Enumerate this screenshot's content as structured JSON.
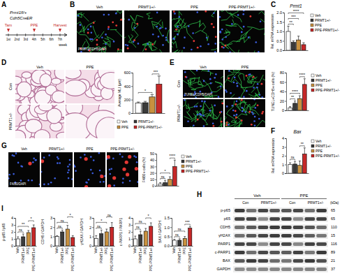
{
  "timeline": {
    "panel": "A",
    "mouse": [
      "Prmt1fl/+",
      "Cdh5CreER"
    ],
    "weeks": [
      "1st",
      "2nd",
      "3rd",
      "4th",
      "5th",
      "6th",
      "7th"
    ],
    "events": [
      "Tam",
      null,
      null,
      "PPE",
      null,
      null,
      "Harvest"
    ],
    "unit": "week"
  },
  "images": [
    {
      "panel": "B",
      "stain": "PRMT1/CDH5/DAPI",
      "labels": [
        "Veh",
        "PRMT1+/-",
        "PPE",
        "PPE-PRMT1+/-"
      ]
    },
    {
      "panel": "D",
      "columns": [
        "Veh",
        "PPE"
      ],
      "rows": [
        "Con",
        "PRMT1+/-"
      ]
    },
    {
      "panel": "E",
      "stain": "TUNEL/CDH5/DAPI",
      "columns": [
        "Veh",
        "PPE"
      ],
      "rows": [
        "Con",
        "PRMT1+/-"
      ]
    },
    {
      "panel": "G",
      "stain": "F4/80/DAPI",
      "labels": [
        "Veh",
        "PRMT1+/-",
        "PPE",
        "PPE-PRMT1+/-"
      ]
    }
  ],
  "blot": {
    "panel": "H",
    "groups": [
      "Veh",
      "PPE"
    ],
    "subgroups": [
      "Con",
      "PRMT1+/-",
      "Con",
      "PRMT1+/-"
    ],
    "unit": "(kDa)",
    "rows": [
      {
        "label": "p-p65",
        "kda": 65
      },
      {
        "label": "p65",
        "kda": 65
      },
      {
        "label": "CDH5",
        "kda": 110
      },
      {
        "label": "γH2AX",
        "kda": 15
      },
      {
        "label": "PARP1",
        "kda": 116
      },
      {
        "label": "c-PARP1",
        "kda": 89
      },
      {
        "label": "BAX",
        "kda": 21
      },
      {
        "label": "GAPDH",
        "kda": 37
      }
    ]
  },
  "chart_data": [
    {
      "panel": "C",
      "type": "bar",
      "title": "Prmt1",
      "y_label": "Rel. mRNA expression",
      "categories": [
        null
      ],
      "series": [
        {
          "name": "Veh",
          "color": "#ffffff",
          "values": [
            1.0
          ],
          "errors": [
            0.28
          ]
        },
        {
          "name": "PRMT1+/-",
          "color": "#3a3a3a",
          "values": [
            0.42
          ],
          "errors": [
            0.08
          ]
        },
        {
          "name": "PPE",
          "color": "#c8913f",
          "values": [
            0.55
          ],
          "errors": [
            0.2
          ]
        },
        {
          "name": "PPE-PRMT1+/-",
          "color": "#c62828",
          "values": [
            0.3
          ],
          "errors": [
            0.1
          ]
        }
      ],
      "ylim": [
        0,
        2
      ],
      "yticks": [
        {
          "value": 0,
          "label": "0.0"
        },
        {
          "value": 0.5,
          "label": "0.5"
        },
        {
          "value": 1,
          "label": "1.0"
        },
        {
          "value": 1.5,
          "label": "1.5"
        },
        {
          "value": 2,
          "label": "2.0"
        }
      ],
      "legend": "right",
      "significance": [
        {
          "label": "**",
          "pair": [
            0,
            1
          ]
        },
        {
          "label": "***",
          "pair": [
            0,
            2
          ]
        },
        {
          "label": "****",
          "pair": [
            0,
            3
          ]
        }
      ]
    },
    {
      "type": "bar",
      "y_label": "Average MLI (μm)",
      "categories": [
        null
      ],
      "series": [
        {
          "name": "Veh",
          "color": "#ffffff",
          "values": [
            150
          ],
          "errors": [
            15
          ]
        },
        {
          "name": "PRMT1+/-",
          "color": "#3a3a3a",
          "values": [
            155
          ],
          "errors": [
            20
          ]
        },
        {
          "name": "PPE",
          "color": "#c8913f",
          "values": [
            240
          ],
          "errors": [
            35
          ]
        },
        {
          "name": "PPE-PRMT1+/-",
          "color": "#c62828",
          "values": [
            430
          ],
          "errors": [
            120
          ]
        }
      ],
      "ylim": [
        0,
        600
      ],
      "yticks": [
        0,
        200,
        400,
        600
      ],
      "legend": "bottom",
      "significance": [
        {
          "label": "*",
          "pair": [
            0,
            2
          ]
        },
        {
          "label": "***",
          "pair": [
            2,
            3
          ]
        }
      ]
    },
    {
      "type": "bar",
      "y_label": "TUNEL+CDH5+ cells (%)",
      "categories": [
        null
      ],
      "series": [
        {
          "name": "Veh",
          "color": "#ffffff",
          "values": [
            5
          ],
          "errors": [
            3
          ]
        },
        {
          "name": "PRMT1+/-",
          "color": "#3a3a3a",
          "values": [
            15
          ],
          "errors": [
            5
          ]
        },
        {
          "name": "PPE",
          "color": "#c8913f",
          "values": [
            25
          ],
          "errors": [
            6
          ]
        },
        {
          "name": "PPE-PRMT1+/-",
          "color": "#c62828",
          "values": [
            55
          ],
          "errors": [
            12
          ]
        }
      ],
      "ylim": [
        0,
        80
      ],
      "yticks": [
        0,
        20,
        40,
        60,
        80
      ],
      "legend": "right",
      "significance": [
        {
          "label": "**",
          "pair": [
            0,
            1
          ]
        },
        {
          "label": "****",
          "pair": [
            0,
            2
          ]
        },
        {
          "label": "****",
          "pair": [
            2,
            3
          ]
        }
      ]
    },
    {
      "panel": "F",
      "type": "bar",
      "title": "Bax",
      "y_label": "Rel. mRNA expression",
      "categories": [
        null
      ],
      "series": [
        {
          "name": "Veh",
          "color": "#ffffff",
          "values": [
            1.0
          ],
          "errors": [
            0.2
          ]
        },
        {
          "name": "PRMT1+/-",
          "color": "#3a3a3a",
          "values": [
            1.05
          ],
          "errors": [
            0.3
          ]
        },
        {
          "name": "PPE",
          "color": "#c8913f",
          "values": [
            0.9
          ],
          "errors": [
            0.5
          ]
        },
        {
          "name": "PPE-PRMT1+/-",
          "color": "#c62828",
          "values": [
            2.2
          ],
          "errors": [
            0.7
          ]
        }
      ],
      "ylim": [
        0,
        4
      ],
      "yticks": [
        0,
        1,
        2,
        3,
        4
      ],
      "legend": "right",
      "significance": [
        {
          "label": "ns",
          "pair": [
            0,
            1
          ]
        },
        {
          "label": "**",
          "pair": [
            2,
            3
          ]
        }
      ]
    },
    {
      "type": "bar",
      "y_label": "F4/80+ cells (%)",
      "categories": [
        null
      ],
      "series": [
        {
          "name": "Veh",
          "color": "#ffffff",
          "values": [
            3
          ],
          "errors": [
            2
          ]
        },
        {
          "name": "PRMT1+/-",
          "color": "#3a3a3a",
          "values": [
            5
          ],
          "errors": [
            3
          ]
        },
        {
          "name": "PPE",
          "color": "#c8913f",
          "values": [
            10
          ],
          "errors": [
            4
          ]
        },
        {
          "name": "PPE-PRMT1+/-",
          "color": "#c62828",
          "values": [
            30
          ],
          "errors": [
            10
          ]
        }
      ],
      "ylim": [
        0,
        50
      ],
      "yticks": [
        0,
        10,
        20,
        30,
        40,
        50
      ],
      "legend": "right",
      "significance": [
        {
          "label": "ns",
          "pair": [
            0,
            1
          ]
        },
        {
          "label": "*",
          "pair": [
            0,
            2
          ]
        },
        {
          "label": "****",
          "pair": [
            2,
            3
          ]
        }
      ]
    },
    {
      "panel": "I",
      "type": "bar",
      "y_label": "p-p65 / p65",
      "categories": [
        "Veh",
        "PRMT1+/-",
        "PPE",
        "PPE-PRMT1+/-"
      ],
      "values": [
        1.0,
        1.3,
        1.9,
        2.6
      ],
      "errors": [
        0.3,
        0.4,
        0.3,
        0.4
      ],
      "colors": [
        "#ffffff",
        "#3a3a3a",
        "#c8913f",
        "#c62828"
      ],
      "ylim": [
        0,
        4
      ],
      "yticks": [
        0,
        1,
        2,
        3,
        4
      ],
      "significance": [
        {
          "label": "ns",
          "pair": [
            0,
            1
          ]
        },
        {
          "label": "**",
          "pair": [
            0,
            2
          ]
        },
        {
          "label": "*",
          "pair": [
            2,
            3
          ]
        }
      ]
    },
    {
      "type": "bar",
      "y_label": "CDH5 / GAPDH",
      "categories": [
        "Veh",
        "PRMT1+/-",
        "PPE",
        "PPE-PRMT1+/-"
      ],
      "values": [
        1.0,
        1.5,
        1.8,
        0.9
      ],
      "errors": [
        0.1,
        0.2,
        0.4,
        0.2
      ],
      "colors": [
        "#ffffff",
        "#3a3a3a",
        "#c8913f",
        "#c62828"
      ],
      "ylim": [
        0,
        3
      ],
      "yticks": [
        0,
        1,
        2,
        3
      ],
      "significance": [
        {
          "label": "ns",
          "pair": [
            0,
            1
          ]
        },
        {
          "label": "ns",
          "pair": [
            0,
            2
          ]
        },
        {
          "label": "*",
          "pair": [
            2,
            3
          ]
        }
      ]
    },
    {
      "type": "bar",
      "y_label": "γH2AX / GAPDH",
      "categories": [
        "Veh",
        "PRMT1+/-",
        "PPE",
        "PPE-PRMT1+/-"
      ],
      "values": [
        0.8,
        1.3,
        1.5,
        2.0
      ],
      "errors": [
        0.3,
        0.4,
        0.3,
        0.5
      ],
      "colors": [
        "#ffffff",
        "#3a3a3a",
        "#c8913f",
        "#c62828"
      ],
      "ylim": [
        0,
        3
      ],
      "yticks": [
        0,
        1,
        2,
        3
      ],
      "significance": [
        {
          "label": "ns",
          "pair": [
            0,
            1
          ]
        },
        {
          "label": "*",
          "pair": [
            0,
            2
          ]
        },
        {
          "label": "ns",
          "pair": [
            2,
            3
          ]
        }
      ]
    },
    {
      "type": "bar",
      "y_label": "c-PARP1 / PARP1",
      "categories": [
        "Veh",
        "PRMT1+/-",
        "PPE",
        "PPE-PRMT1+/-"
      ],
      "values": [
        1.0,
        1.6,
        2.1,
        2.8
      ],
      "errors": [
        0.4,
        0.5,
        0.4,
        0.5
      ],
      "colors": [
        "#ffffff",
        "#3a3a3a",
        "#c8913f",
        "#c62828"
      ],
      "ylim": [
        0,
        4
      ],
      "yticks": [
        0,
        1,
        2,
        3,
        4
      ],
      "significance": [
        {
          "label": "ns",
          "pair": [
            0,
            1
          ]
        },
        {
          "label": "ns",
          "pair": [
            0,
            2
          ]
        },
        {
          "label": "*",
          "pair": [
            2,
            3
          ]
        }
      ]
    },
    {
      "type": "bar",
      "y_label": "BAX / GAPDH",
      "categories": [
        "Veh",
        "PRMT1+/-",
        "PPE",
        "PPE-PRMT1+/-"
      ],
      "values": [
        0.3,
        0.3,
        0.4,
        0.95
      ],
      "errors": [
        0.05,
        0.08,
        0.1,
        0.1
      ],
      "colors": [
        "#ffffff",
        "#3a3a3a",
        "#c8913f",
        "#c62828"
      ],
      "ylim": [
        0,
        1.5
      ],
      "yticks": [
        {
          "value": 0,
          "label": "0.0"
        },
        {
          "value": 0.5,
          "label": "0.5"
        },
        {
          "value": 1,
          "label": "1.0"
        },
        {
          "value": 1.5,
          "label": "1.5"
        }
      ],
      "significance": [
        {
          "label": "ns",
          "pair": [
            0,
            1
          ]
        },
        {
          "label": "ns",
          "pair": [
            0,
            2
          ]
        },
        {
          "label": "***",
          "pair": [
            2,
            3
          ]
        }
      ]
    }
  ]
}
